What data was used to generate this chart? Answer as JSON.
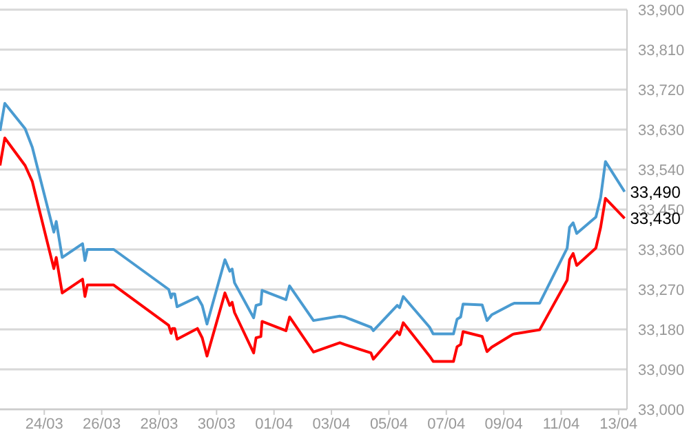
{
  "chart_data": {
    "type": "line",
    "x": [
      "--03-22T11:00",
      "--03-22T15:00",
      "--03-23T08:00",
      "--03-23T14:00",
      "--03-24T08:00",
      "--03-24T10:00",
      "--03-24T15:00",
      "--03-25T08:00",
      "--03-25T10:00",
      "--03-25T12:00",
      "--03-26T10:00",
      "--03-28T08:00",
      "--03-28T10:00",
      "--03-28T11:00",
      "--03-28T13:00",
      "--03-28T15:00",
      "--03-29T08:00",
      "--03-29T12:00",
      "--03-29T16:00",
      "--03-30T07:00",
      "--03-30T11:00",
      "--03-30T13:00",
      "--03-30T15:00",
      "--03-31T07:00",
      "--03-31T09:00",
      "--03-31T13:00",
      "--03-31T14:00",
      "--04-01T10:00",
      "--04-01T13:00",
      "--04-02T09:00",
      "--04-03T07:00",
      "--04-03T11:00",
      "--04-04T09:00",
      "--04-04T11:00",
      "--04-05T07:00",
      "--04-05T09:00",
      "--04-05T12:00",
      "--04-06T10:00",
      "--04-06T13:00",
      "--04-07T06:00",
      "--04-07T09:00",
      "--04-07T12:00",
      "--04-07T14:00",
      "--04-08T06:00",
      "--04-08T10:00",
      "--04-08T14:00",
      "--04-09T07:00",
      "--04-09T09:00",
      "--04-10T06:00",
      "--04-11T05:00",
      "--04-11T07:00",
      "--04-11T10:00",
      "--04-11T13:00",
      "--04-12T05:00",
      "--04-12T09:00",
      "--04-12T13:00",
      "--04-13T05:00"
    ],
    "series": [
      {
        "color": "#4a9bd1",
        "values": [
          33627,
          33689,
          33632,
          33590,
          33399,
          33423,
          33342,
          33373,
          33335,
          33360,
          33360,
          33270,
          33251,
          33260,
          33260,
          33231,
          33253,
          33234,
          33192,
          33337,
          33311,
          33316,
          33285,
          33206,
          33234,
          33237,
          33268,
          33247,
          33278,
          33200,
          33210,
          33208,
          33185,
          33177,
          33234,
          33229,
          33254,
          33185,
          33170,
          33170,
          33203,
          33208,
          33237,
          33235,
          33200,
          33213,
          33237,
          33239,
          33239,
          33363,
          33410,
          33420,
          33396,
          33433,
          33477,
          33558,
          33490
        ]
      },
      {
        "color": "#ff0000",
        "values": [
          33549,
          33611,
          33549,
          33513,
          33317,
          33342,
          33262,
          33293,
          33254,
          33280,
          33280,
          33189,
          33171,
          33182,
          33182,
          33158,
          33182,
          33161,
          33120,
          33262,
          33234,
          33241,
          33218,
          33127,
          33161,
          33164,
          33198,
          33177,
          33208,
          33129,
          33150,
          33146,
          33127,
          33113,
          33175,
          33168,
          33195,
          33120,
          33108,
          33108,
          33141,
          33146,
          33175,
          33164,
          33130,
          33140,
          33168,
          33170,
          33179,
          33291,
          33337,
          33351,
          33324,
          33363,
          33410,
          33475,
          33430
        ]
      }
    ],
    "xlim": [
      "--03-22T11:00",
      "--04-13T07:00"
    ],
    "xticks": [
      {
        "value": "--03-24",
        "label": "24/03"
      },
      {
        "value": "--03-26",
        "label": "26/03"
      },
      {
        "value": "--03-28",
        "label": "28/03"
      },
      {
        "value": "--03-30",
        "label": "30/03"
      },
      {
        "value": "--04-01",
        "label": "01/04"
      },
      {
        "value": "--04-03",
        "label": "03/04"
      },
      {
        "value": "--04-05",
        "label": "05/04"
      },
      {
        "value": "--04-07",
        "label": "07/04"
      },
      {
        "value": "--04-09",
        "label": "09/04"
      },
      {
        "value": "--04-11",
        "label": "11/04"
      },
      {
        "value": "--04-13",
        "label": "13/04"
      }
    ],
    "ylim": [
      33000,
      33900
    ],
    "yticks": [
      {
        "value": 33000,
        "label": "33,000"
      },
      {
        "value": 33090,
        "label": "33,090"
      },
      {
        "value": 33180,
        "label": "33,180"
      },
      {
        "value": 33270,
        "label": "33,270"
      },
      {
        "value": 33360,
        "label": "33,360"
      },
      {
        "value": 33450,
        "label": "33,450"
      },
      {
        "value": 33540,
        "label": "33,540"
      },
      {
        "value": 33630,
        "label": "33,630"
      },
      {
        "value": 33720,
        "label": "33,720"
      },
      {
        "value": 33810,
        "label": "33,810"
      },
      {
        "value": 33900,
        "label": "33,900"
      }
    ],
    "annotations": [
      {
        "text": "33,490",
        "x": "--04-13T05:00",
        "y": 33490
      },
      {
        "text": "33,430",
        "x": "--04-13T05:00",
        "y": 33430
      }
    ],
    "grid": "y",
    "legend": false,
    "marker": "none",
    "line_style": "solid"
  }
}
